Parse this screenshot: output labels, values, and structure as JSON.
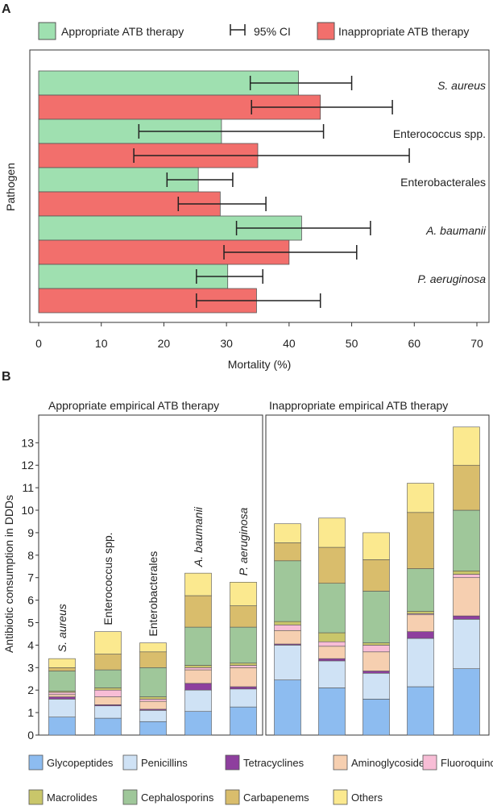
{
  "panel_labels": [
    "A",
    "B"
  ],
  "colors": {
    "appropriate": "#9fe0b0",
    "inappropriate": "#f26f6c",
    "Glycopeptides": "#8dbcf0",
    "Penicillins": "#cfe2f5",
    "Tetracyclines": "#8e3f9e",
    "Aminoglycoside": "#f6cfb0",
    "Fluoroquinolones": "#f8bdd6",
    "Macrolides": "#c9c66a",
    "Cephalosporins": "#9fc79a",
    "Carbapenems": "#d9bd6c",
    "Others": "#fbe98f"
  },
  "chart_data": [
    {
      "type": "bar",
      "orientation": "horizontal",
      "legend": [
        "Appropriate ATB therapy",
        "95% CI",
        "Inappropriate ATB therapy"
      ],
      "legend_placement": "top",
      "xlabel": "Mortality (%)",
      "ylabel": "Pathogen",
      "xlim": [
        0,
        70
      ],
      "xticks": [
        0,
        10,
        20,
        30,
        40,
        50,
        60,
        70
      ],
      "categories": [
        "S. aureus",
        "Enterococcus spp.",
        "Enterobacterales",
        "A. baumanii",
        "P. aeruginosa"
      ],
      "italic_categories": [
        true,
        false,
        false,
        true,
        true
      ],
      "series": [
        {
          "name": "Appropriate ATB therapy",
          "values": [
            41.5,
            29.2,
            25.5,
            42.0,
            30.2
          ],
          "ci_low": [
            33.8,
            16.0,
            20.5,
            31.6,
            25.2
          ],
          "ci_high": [
            50.0,
            45.5,
            31.0,
            53.0,
            35.8
          ]
        },
        {
          "name": "Inappropriate ATB therapy",
          "values": [
            45.0,
            35.0,
            29.0,
            40.0,
            34.8
          ],
          "ci_low": [
            34.0,
            15.2,
            22.3,
            29.6,
            25.2
          ],
          "ci_high": [
            56.5,
            59.2,
            36.3,
            50.8,
            45.0
          ]
        }
      ]
    },
    {
      "type": "bar",
      "stacked": true,
      "ylabel": "Antibiotic consumption in DDDs",
      "ylim": [
        0,
        13.8
      ],
      "yticks": [
        0,
        1,
        2,
        3,
        4,
        5,
        6,
        7,
        8,
        9,
        10,
        11,
        12,
        13
      ],
      "panels": [
        "Appropriate empirical ATB therapy",
        "Inappropriate empirical ATB therapy"
      ],
      "categories": [
        "S. aureus",
        "Enterococcus spp.",
        "Enterobacterales",
        "A. baumanii",
        "P. aeruginosa"
      ],
      "italic_categories": [
        true,
        false,
        false,
        true,
        true
      ],
      "legend": [
        "Glycopeptides",
        "Penicillins",
        "Tetracyclines",
        "Aminoglycoside",
        "Fluoroquinolones",
        "Macrolides",
        "Cephalosporins",
        "Carbapenems",
        "Others"
      ],
      "legend_placement": "bottom",
      "appropriate": [
        {
          "Glycopeptides": 0.8,
          "Penicillins": 0.8,
          "Tetracyclines": 0.1,
          "Aminoglycoside": 0.1,
          "Fluoroquinolones": 0.1,
          "Macrolides": 0.05,
          "Cephalosporins": 0.9,
          "Carbapenems": 0.15,
          "Others": 0.4
        },
        {
          "Glycopeptides": 0.75,
          "Penicillins": 0.55,
          "Tetracyclines": 0.05,
          "Aminoglycoside": 0.35,
          "Fluoroquinolones": 0.3,
          "Macrolides": 0.1,
          "Cephalosporins": 0.8,
          "Carbapenems": 0.7,
          "Others": 1.0
        },
        {
          "Glycopeptides": 0.6,
          "Penicillins": 0.5,
          "Tetracyclines": 0.05,
          "Aminoglycoside": 0.35,
          "Fluoroquinolones": 0.1,
          "Macrolides": 0.1,
          "Cephalosporins": 1.3,
          "Carbapenems": 0.7,
          "Others": 0.4
        },
        {
          "Glycopeptides": 1.05,
          "Penicillins": 0.95,
          "Tetracyclines": 0.3,
          "Aminoglycoside": 0.6,
          "Fluoroquinolones": 0.1,
          "Macrolides": 0.1,
          "Cephalosporins": 1.7,
          "Carbapenems": 1.4,
          "Others": 1.0
        },
        {
          "Glycopeptides": 1.25,
          "Penicillins": 0.8,
          "Tetracyclines": 0.1,
          "Aminoglycoside": 0.85,
          "Fluoroquinolones": 0.1,
          "Macrolides": 0.1,
          "Cephalosporins": 1.6,
          "Carbapenems": 0.95,
          "Others": 1.05
        }
      ],
      "inappropriate": [
        {
          "Glycopeptides": 2.45,
          "Penicillins": 1.55,
          "Tetracyclines": 0.05,
          "Aminoglycoside": 0.6,
          "Fluoroquinolones": 0.25,
          "Macrolides": 0.15,
          "Cephalosporins": 2.7,
          "Carbapenems": 0.8,
          "Others": 0.85
        },
        {
          "Glycopeptides": 2.1,
          "Penicillins": 1.2,
          "Tetracyclines": 0.1,
          "Aminoglycoside": 0.55,
          "Fluoroquinolones": 0.2,
          "Macrolides": 0.4,
          "Cephalosporins": 2.2,
          "Carbapenems": 1.6,
          "Others": 1.3
        },
        {
          "Glycopeptides": 1.6,
          "Penicillins": 1.15,
          "Tetracyclines": 0.1,
          "Aminoglycoside": 0.85,
          "Fluoroquinolones": 0.3,
          "Macrolides": 0.1,
          "Cephalosporins": 2.3,
          "Carbapenems": 1.4,
          "Others": 1.2
        },
        {
          "Glycopeptides": 2.15,
          "Penicillins": 2.15,
          "Tetracyclines": 0.3,
          "Aminoglycoside": 0.75,
          "Fluoroquinolones": 0.05,
          "Macrolides": 0.1,
          "Cephalosporins": 1.9,
          "Carbapenems": 2.5,
          "Others": 1.3
        },
        {
          "Glycopeptides": 2.95,
          "Penicillins": 2.2,
          "Tetracyclines": 0.15,
          "Aminoglycoside": 1.7,
          "Fluoroquinolones": 0.15,
          "Macrolides": 0.15,
          "Cephalosporins": 2.7,
          "Carbapenems": 2.0,
          "Others": 1.7
        }
      ]
    }
  ]
}
